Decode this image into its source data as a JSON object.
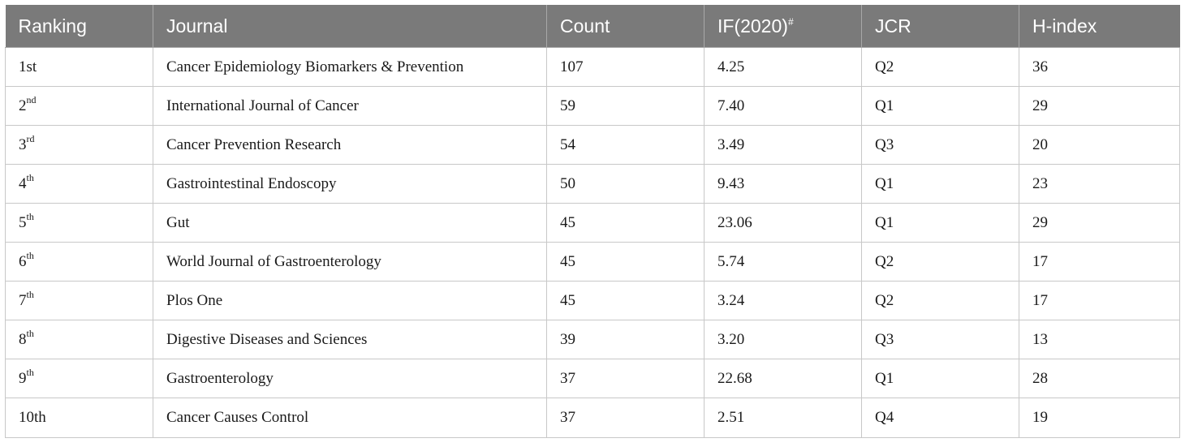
{
  "headers": [
    "Ranking",
    "Journal",
    "Count",
    "IF(2020)",
    "JCR",
    "H-index"
  ],
  "header_sup": "#",
  "rows": [
    {
      "rank": "1st",
      "rank_sup": "",
      "journal": "Cancer Epidemiology Biomarkers & Prevention",
      "count": "107",
      "if": "4.25",
      "jcr": "Q2",
      "h": "36"
    },
    {
      "rank": "2",
      "rank_sup": "nd",
      "journal": "International Journal of Cancer",
      "count": "59",
      "if": "7.40",
      "jcr": "Q1",
      "h": "29"
    },
    {
      "rank": "3",
      "rank_sup": "rd",
      "journal": "Cancer Prevention Research",
      "count": "54",
      "if": "3.49",
      "jcr": "Q3",
      "h": "20"
    },
    {
      "rank": "4",
      "rank_sup": "th",
      "journal": "Gastrointestinal Endoscopy",
      "count": "50",
      "if": "9.43",
      "jcr": "Q1",
      "h": "23"
    },
    {
      "rank": "5",
      "rank_sup": "th",
      "journal": "Gut",
      "count": "45",
      "if": "23.06",
      "jcr": "Q1",
      "h": "29"
    },
    {
      "rank": "6",
      "rank_sup": "th",
      "journal": "World Journal of Gastroenterology",
      "count": "45",
      "if": "5.74",
      "jcr": "Q2",
      "h": "17"
    },
    {
      "rank": "7",
      "rank_sup": "th",
      "journal": "Plos One",
      "count": "45",
      "if": "3.24",
      "jcr": "Q2",
      "h": "17"
    },
    {
      "rank": "8",
      "rank_sup": "th",
      "journal": "Digestive Diseases and Sciences",
      "count": "39",
      "if": "3.20",
      "jcr": "Q3",
      "h": "13"
    },
    {
      "rank": "9",
      "rank_sup": "th",
      "journal": "Gastroenterology",
      "count": "37",
      "if": "22.68",
      "jcr": "Q1",
      "h": "28"
    },
    {
      "rank": "10th",
      "rank_sup": "",
      "journal": "Cancer Causes Control",
      "count": "37",
      "if": "2.51",
      "jcr": "Q4",
      "h": "19"
    }
  ]
}
